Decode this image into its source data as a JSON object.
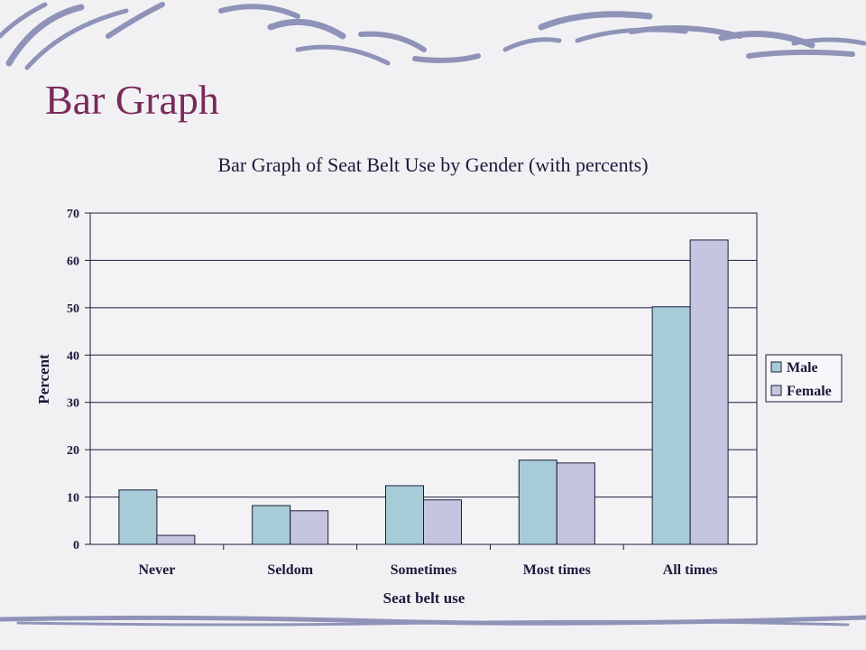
{
  "slide": {
    "title": "Bar Graph"
  },
  "colors": {
    "title": "#7a2a5a",
    "male": "#a7ccd7",
    "female": "#c5c5e0",
    "gridline": "#1a1a3a",
    "decor": "#8f93b8"
  },
  "chart_data": {
    "type": "bar",
    "title": "Bar Graph of Seat Belt Use by Gender (with percents)",
    "xlabel": "Seat belt use",
    "ylabel": "Percent",
    "ylim": [
      0,
      70
    ],
    "yticks": [
      0,
      10,
      20,
      30,
      40,
      50,
      60,
      70
    ],
    "categories": [
      "Never",
      "Seldom",
      "Sometimes",
      "Most times",
      "All times"
    ],
    "series": [
      {
        "name": "Male",
        "values": [
          11.5,
          8.2,
          12.4,
          17.8,
          50.2
        ],
        "color": "#a7ccd7"
      },
      {
        "name": "Female",
        "values": [
          1.9,
          7.1,
          9.4,
          17.2,
          64.3
        ],
        "color": "#c5c5e0"
      }
    ],
    "grid": true,
    "legend": "right"
  }
}
